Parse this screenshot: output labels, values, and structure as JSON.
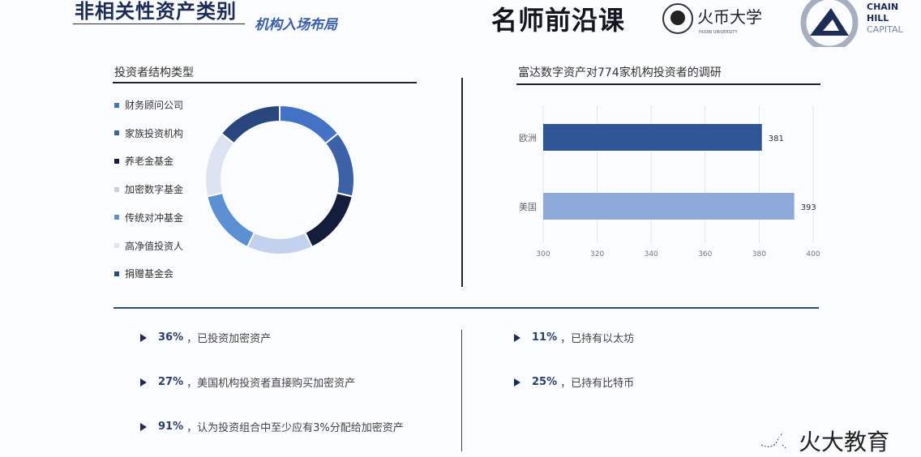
{
  "header": {
    "title": "非相关性资产类别",
    "subtitle": "机构入场布局"
  },
  "logos": {
    "brand1": "名师前沿课",
    "brand2": "火币大学",
    "brand2_sub": "HUOBI UNIVERSITY",
    "brand3": [
      "CHAIN",
      "HILL",
      "CAPITAL"
    ]
  },
  "left_panel": {
    "title": "投资者结构类型"
  },
  "right_panel": {
    "title": "富达数字资产对774家机构投资者的调研"
  },
  "chart_data": [
    {
      "type": "pie",
      "subtype": "donut",
      "title": "投资者结构类型",
      "legend_placement": "left",
      "categories": [
        "财务顾问公司",
        "家族投资机构",
        "养老金基金",
        "加密数字基金",
        "传统对冲基金",
        "高净值投资人",
        "捐赠基金会"
      ],
      "values": [
        1,
        1,
        1,
        1,
        1,
        1,
        1
      ],
      "colors": [
        "#4472c4",
        "#3b62a6",
        "#141d3a",
        "#c3d2ec",
        "#5b90d2",
        "#dde3f0",
        "#27477e"
      ]
    },
    {
      "type": "bar",
      "orientation": "horizontal",
      "title": "富达数字资产对774家机构投资者的调研",
      "categories": [
        "欧洲",
        "美国"
      ],
      "values": [
        381,
        393
      ],
      "data_labels": [
        "381",
        "393"
      ],
      "colors": [
        "#2f5597",
        "#8eaadb"
      ],
      "xlim": [
        300,
        400
      ],
      "xticks": [
        "300",
        "320",
        "340",
        "360",
        "380",
        "400"
      ],
      "grid": true
    }
  ],
  "bullets_left": [
    {
      "pct": "36%",
      "text": "，已投资加密资产"
    },
    {
      "pct": "27%",
      "text": "，美国机构投资者直接购买加密资产"
    },
    {
      "pct": "91%",
      "text": "，认为投资组合中至少应有3%分配给加密资产"
    }
  ],
  "bullets_right": [
    {
      "pct": "11%",
      "text": "，已持有以太坊"
    },
    {
      "pct": "25%",
      "text": "，已持有比特币"
    }
  ],
  "watermark": "火大教育"
}
